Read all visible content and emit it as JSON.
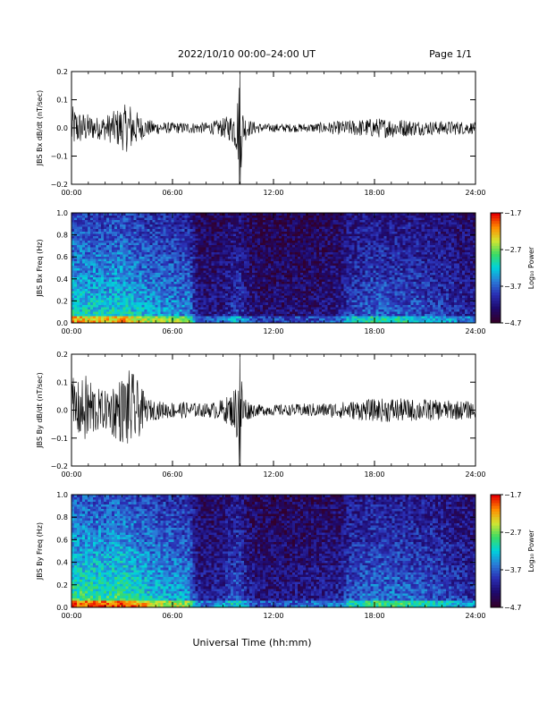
{
  "header": {
    "title": "2022/10/10   00:00–24:00 UT",
    "page": "Page 1/1"
  },
  "footer": {
    "xlabel": "Universal Time (hh:mm)"
  },
  "colors": {
    "trace": "#000000",
    "colormap": [
      "#32002d",
      "#1e0a6e",
      "#2a2fb4",
      "#2a7bd8",
      "#00d2dc",
      "#3cdc64",
      "#d2e632",
      "#ff8c00",
      "#e60000"
    ]
  },
  "chart_data": [
    {
      "type": "line",
      "ylabel": "JBS Bx dB/dt (nT/sec)",
      "xlim": [
        0,
        24
      ],
      "ylim": [
        -0.2,
        0.2
      ],
      "x_ticks": [
        "00:00",
        "06:00",
        "12:00",
        "18:00",
        "24:00"
      ],
      "y_ticks": [
        "0.2",
        "0.1",
        "0.0",
        "−0.1",
        "−0.2"
      ],
      "series": [
        {
          "x": [
            0,
            0.5,
            1,
            1.5,
            2,
            2.5,
            3,
            3.5,
            4,
            4.5,
            5,
            5.5,
            6,
            6.5,
            7,
            7.5,
            8,
            8.5,
            9,
            9.5,
            9.8,
            10,
            10.2,
            10.5,
            11,
            11.5,
            12,
            13,
            14,
            15,
            16,
            17,
            18,
            19,
            20,
            21,
            22,
            23,
            24
          ],
          "envelope": [
            0.08,
            0.06,
            0.05,
            0.04,
            0.045,
            0.06,
            0.08,
            0.09,
            0.05,
            0.03,
            0.025,
            0.02,
            0.02,
            0.02,
            0.02,
            0.02,
            0.02,
            0.025,
            0.035,
            0.05,
            0.09,
            0.2,
            0.06,
            0.03,
            0.02,
            0.015,
            0.015,
            0.015,
            0.015,
            0.02,
            0.025,
            0.03,
            0.035,
            0.035,
            0.03,
            0.025,
            0.025,
            0.025,
            0.02
          ]
        }
      ]
    },
    {
      "type": "heatmap",
      "ylabel": "JBS Bx Freq (Hz)",
      "xlim": [
        0,
        24
      ],
      "ylim": [
        0,
        1.0
      ],
      "x_ticks": [
        "00:00",
        "06:00",
        "12:00",
        "18:00",
        "24:00"
      ],
      "y_ticks": [
        "1.0",
        "0.8",
        "0.6",
        "0.4",
        "0.2",
        "0.0"
      ],
      "colorbar_label": "Log₁₀ Power",
      "colorbar_ticks": [
        "−1.7",
        "−2.7",
        "−3.7",
        "−4.7"
      ],
      "zlim": [
        -4.7,
        -1.7
      ],
      "activity_profile": {
        "hours": [
          0,
          1,
          2,
          3,
          4,
          5,
          6,
          7,
          7.5,
          8,
          9,
          9.8,
          10.5,
          11,
          12,
          14,
          16,
          16.5,
          18,
          20,
          22,
          24
        ],
        "level": [
          0.62,
          0.6,
          0.58,
          0.62,
          0.55,
          0.5,
          0.48,
          0.45,
          0.2,
          0.18,
          0.2,
          0.32,
          0.2,
          0.15,
          0.15,
          0.15,
          0.2,
          0.32,
          0.38,
          0.36,
          0.3,
          0.22
        ]
      }
    },
    {
      "type": "line",
      "ylabel": "JBS By dB/dt (nT/sec)",
      "xlim": [
        0,
        24
      ],
      "ylim": [
        -0.2,
        0.2
      ],
      "x_ticks": [
        "00:00",
        "06:00",
        "12:00",
        "18:00",
        "24:00"
      ],
      "y_ticks": [
        "0.2",
        "0.1",
        "0.0",
        "−0.1",
        "−0.2"
      ],
      "series": [
        {
          "x": [
            0,
            0.5,
            1,
            1.5,
            2,
            2.5,
            3,
            3.5,
            4,
            4.5,
            5,
            5.5,
            6,
            6.5,
            7,
            7.5,
            8,
            8.5,
            9,
            9.5,
            9.8,
            10,
            10.2,
            10.5,
            11,
            11.5,
            12,
            13,
            14,
            15,
            16,
            17,
            18,
            19,
            20,
            21,
            22,
            23,
            24
          ],
          "envelope": [
            0.12,
            0.1,
            0.14,
            0.08,
            0.07,
            0.1,
            0.12,
            0.15,
            0.1,
            0.04,
            0.035,
            0.03,
            0.03,
            0.03,
            0.03,
            0.025,
            0.025,
            0.03,
            0.04,
            0.06,
            0.1,
            0.2,
            0.07,
            0.035,
            0.02,
            0.02,
            0.02,
            0.02,
            0.025,
            0.025,
            0.03,
            0.035,
            0.04,
            0.045,
            0.04,
            0.04,
            0.035,
            0.035,
            0.03
          ]
        }
      ]
    },
    {
      "type": "heatmap",
      "ylabel": "JBS By Freq (Hz)",
      "xlim": [
        0,
        24
      ],
      "ylim": [
        0,
        1.0
      ],
      "x_ticks": [
        "00:00",
        "06:00",
        "12:00",
        "18:00",
        "24:00"
      ],
      "y_ticks": [
        "1.0",
        "0.8",
        "0.6",
        "0.4",
        "0.2",
        "0.0"
      ],
      "colorbar_label": "Log₁₀ Power",
      "colorbar_ticks": [
        "−1.7",
        "−2.7",
        "−3.7",
        "−4.7"
      ],
      "zlim": [
        -4.7,
        -1.7
      ],
      "activity_profile": {
        "hours": [
          0,
          1,
          2,
          3,
          4,
          5,
          6,
          7,
          7.5,
          8,
          9,
          9.8,
          10.5,
          11,
          12,
          14,
          16,
          16.5,
          18,
          20,
          22,
          24
        ],
        "level": [
          0.7,
          0.68,
          0.66,
          0.7,
          0.62,
          0.56,
          0.52,
          0.5,
          0.24,
          0.22,
          0.26,
          0.38,
          0.24,
          0.18,
          0.18,
          0.2,
          0.24,
          0.36,
          0.42,
          0.4,
          0.34,
          0.26
        ]
      }
    }
  ]
}
